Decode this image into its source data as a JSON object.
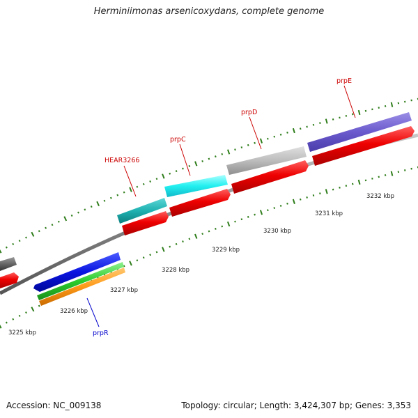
{
  "title": "Herminiimonas arsenicoxydans, complete genome",
  "accession": "Accession: NC_009138",
  "summary": "Topology: circular; Length: 3,424,307 bp; Genes: 3,353",
  "colors": {
    "backbone": "#8a8a8a",
    "tick": "#2e7d1a",
    "label_red": "#cc0000",
    "label_blue": "#0000cc"
  },
  "kbp_labels": [
    "3225 kbp",
    "3226 kbp",
    "3227 kbp",
    "3228 kbp",
    "3229 kbp",
    "3230 kbp",
    "3231 kbp",
    "3232 kbp"
  ],
  "gene_labels": {
    "hear3266": "HEAR3266",
    "prpC": "prpC",
    "prpD": "prpD",
    "prpE": "prpE",
    "prpR": "prpR"
  }
}
